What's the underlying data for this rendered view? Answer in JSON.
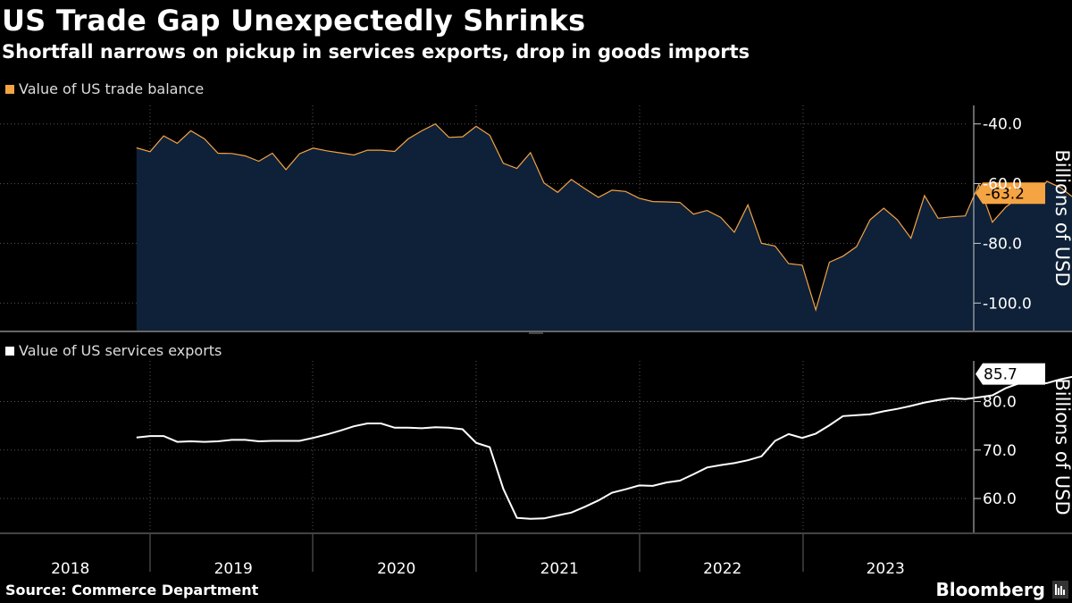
{
  "header": {
    "title": "US Trade Gap Unexpectedly Shrinks",
    "subtitle": "Shortfall narrows on pickup in services exports, drop in goods imports"
  },
  "footer": {
    "source": "Source: Commerce Department",
    "brand": "Bloomberg"
  },
  "colors": {
    "background": "#000000",
    "trade_line": "#f5a443",
    "trade_fill": "#0e2138",
    "services_line": "#ffffff",
    "grid": "#555555"
  },
  "chart_data": [
    {
      "type": "area",
      "title": "Value of US trade balance",
      "legend": "Value of US trade balance",
      "ylabel": "Billions of USD",
      "ylim": [
        -109.2,
        -33.8
      ],
      "yticks": [
        -40.0,
        -60.0,
        -80.0,
        -100.0
      ],
      "ytick_labels": [
        "-40.0",
        "-60.0",
        "-80.0",
        "-100.0"
      ],
      "last_value_label": "-63.2",
      "x_start": "2017-12",
      "x_end": "2023-12",
      "x_years": [
        "2018",
        "2019",
        "2020",
        "2021",
        "2022",
        "2023"
      ],
      "series": [
        {
          "name": "Value of US trade balance",
          "start": "2017-12",
          "values": [
            -48.0,
            -49.3,
            -44.0,
            -46.5,
            -42.3,
            -45.0,
            -49.8,
            -49.9,
            -50.7,
            -52.5,
            -49.8,
            -55.3,
            -50.0,
            -48.1,
            -49.0,
            -49.7,
            -50.4,
            -48.8,
            -48.8,
            -49.2,
            -45.0,
            -42.3,
            -40.0,
            -44.5,
            -44.3,
            -40.8,
            -43.8,
            -53.2,
            -54.9,
            -49.6,
            -59.8,
            -62.9,
            -58.6,
            -61.7,
            -64.6,
            -62.2,
            -62.6,
            -64.9,
            -66.0,
            -66.1,
            -66.3,
            -70.2,
            -69.0,
            -71.3,
            -76.3,
            -67.1,
            -80.0,
            -80.9,
            -86.8,
            -87.3,
            -102.3,
            -86.3,
            -84.3,
            -81.1,
            -72.1,
            -68.2,
            -72.1,
            -78.3,
            -64.0,
            -71.6,
            -71.1,
            -70.8,
            -60.3,
            -72.9,
            -67.8,
            -64.4,
            -65.3,
            -59.2,
            -61.3,
            -64.8,
            -63.2
          ]
        }
      ]
    },
    {
      "type": "line",
      "title": "Value of US services exports",
      "legend": "Value of US services exports",
      "ylabel": "Billions of USD",
      "ylim": [
        53.0,
        88.4
      ],
      "yticks": [
        60.0,
        70.0,
        80.0
      ],
      "ytick_labels": [
        "60.0",
        "70.0",
        "80.0"
      ],
      "last_value_label": "85.7",
      "x_start": "2017-12",
      "x_end": "2023-12",
      "x_years": [
        "2018",
        "2019",
        "2020",
        "2021",
        "2022",
        "2023"
      ],
      "series": [
        {
          "name": "Value of US services exports",
          "start": "2017-12",
          "values": [
            72.6,
            72.9,
            72.9,
            71.7,
            71.8,
            71.7,
            71.8,
            72.1,
            72.1,
            71.8,
            71.9,
            71.9,
            71.9,
            72.5,
            73.2,
            74.0,
            74.9,
            75.5,
            75.5,
            74.6,
            74.6,
            74.5,
            74.7,
            74.6,
            74.3,
            71.5,
            70.6,
            62.0,
            56.0,
            55.8,
            55.9,
            56.5,
            57.1,
            58.3,
            59.6,
            61.2,
            61.9,
            62.7,
            62.6,
            63.3,
            63.7,
            65.0,
            66.4,
            66.9,
            67.3,
            67.9,
            68.7,
            71.9,
            73.3,
            72.5,
            73.4,
            75.1,
            77.0,
            77.2,
            77.4,
            78.0,
            78.5,
            79.1,
            79.8,
            80.3,
            80.7,
            80.5,
            80.9,
            81.3,
            82.8,
            83.8,
            83.8,
            83.8,
            84.6,
            85.2,
            85.7
          ]
        }
      ]
    }
  ]
}
